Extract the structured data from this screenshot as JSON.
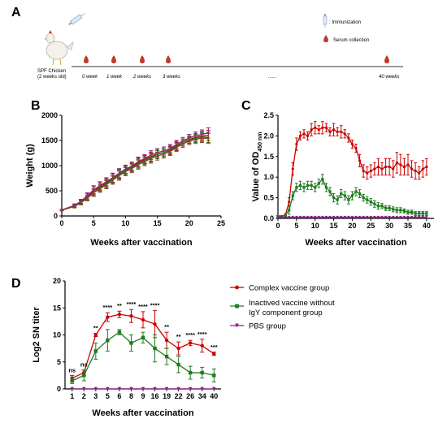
{
  "colors": {
    "complex": "#cc0000",
    "inactived": "#1e7b1e",
    "pbs": "#8b1a8b",
    "brown": "#7a4a1a",
    "blood": "#c0392b"
  },
  "panel_labels": {
    "a": "A",
    "b": "B",
    "c": "C",
    "d": "D"
  },
  "timeline": {
    "legend": {
      "immunization": ": Immunization",
      "serum": "Serum collection"
    },
    "animal_label_line1": "SPF Chicken",
    "animal_label_line2": "(2 weeks old)",
    "time_labels": [
      "0 week",
      "1 week",
      "2 weeks",
      "3 weeks",
      "......",
      "40 weeks"
    ],
    "icons": [
      "chicken-icon",
      "syringe-icon",
      "blood-drop-icon"
    ]
  },
  "chart_data": [
    {
      "panel": "B",
      "type": "line",
      "xlabel": "Weeks after vaccination",
      "ylabel": "Weight (g)",
      "xlim": [
        0,
        25
      ],
      "ylim": [
        0,
        2000
      ],
      "xticks": [
        0,
        5,
        10,
        15,
        20,
        25
      ],
      "yticks": [
        0,
        500,
        1000,
        1500,
        2000
      ],
      "series": [
        {
          "color_key": "complex",
          "x": [
            0,
            2,
            3,
            4,
            5,
            6,
            7,
            8,
            9,
            10,
            11,
            12,
            13,
            14,
            15,
            16,
            17,
            18,
            19,
            20,
            21,
            22,
            23
          ],
          "y": [
            120,
            200,
            280,
            380,
            500,
            580,
            660,
            750,
            840,
            920,
            980,
            1060,
            1120,
            1180,
            1230,
            1260,
            1300,
            1380,
            1460,
            1520,
            1560,
            1590,
            1600
          ],
          "err": [
            15,
            30,
            40,
            60,
            80,
            80,
            80,
            90,
            90,
            80,
            80,
            90,
            80,
            90,
            80,
            80,
            80,
            80,
            70,
            70,
            80,
            90,
            100
          ]
        },
        {
          "color_key": "inactived",
          "x": [
            0,
            2,
            3,
            4,
            5,
            6,
            7,
            8,
            9,
            10,
            11,
            12,
            13,
            14,
            15,
            16,
            17,
            18,
            19,
            20,
            21,
            22,
            23
          ],
          "y": [
            120,
            200,
            270,
            360,
            470,
            560,
            640,
            730,
            820,
            900,
            960,
            1040,
            1100,
            1160,
            1220,
            1260,
            1320,
            1400,
            1460,
            1510,
            1540,
            1570,
            1560
          ],
          "err": [
            15,
            30,
            40,
            50,
            70,
            70,
            80,
            80,
            90,
            80,
            80,
            90,
            80,
            90,
            80,
            80,
            80,
            80,
            70,
            70,
            80,
            90,
            100
          ]
        },
        {
          "color_key": "pbs",
          "x": [
            0,
            2,
            3,
            4,
            5,
            6,
            7,
            8,
            9,
            10,
            11,
            12,
            13,
            14,
            15,
            16,
            17,
            18,
            19,
            20,
            21,
            22,
            23
          ],
          "y": [
            120,
            210,
            290,
            400,
            520,
            600,
            680,
            760,
            850,
            930,
            990,
            1080,
            1140,
            1210,
            1260,
            1290,
            1340,
            1420,
            1490,
            1550,
            1590,
            1620,
            1650
          ],
          "err": [
            15,
            30,
            40,
            60,
            80,
            80,
            80,
            90,
            90,
            80,
            80,
            90,
            80,
            90,
            80,
            80,
            80,
            80,
            70,
            70,
            80,
            90,
            100
          ]
        },
        {
          "color_key": "brown",
          "x": [
            0,
            2,
            3,
            4,
            5,
            6,
            7,
            8,
            9,
            10,
            11,
            12,
            13,
            14,
            15,
            16,
            17,
            18,
            19,
            20,
            21,
            22,
            23
          ],
          "y": [
            115,
            190,
            260,
            350,
            460,
            540,
            620,
            710,
            800,
            880,
            940,
            1020,
            1080,
            1140,
            1190,
            1230,
            1280,
            1360,
            1430,
            1490,
            1520,
            1550,
            1540
          ],
          "err": [
            15,
            30,
            40,
            50,
            70,
            70,
            80,
            80,
            90,
            80,
            80,
            90,
            80,
            90,
            80,
            80,
            80,
            80,
            70,
            70,
            80,
            90,
            100
          ]
        }
      ]
    },
    {
      "panel": "C",
      "type": "line",
      "xlabel": "Weeks after vaccination",
      "ylabel_prefix": "Value of OD",
      "ylabel_sub": "450 nm",
      "xlim": [
        0,
        42
      ],
      "ylim": [
        0,
        2.5
      ],
      "xticks": [
        0,
        5,
        10,
        15,
        20,
        25,
        30,
        35,
        40
      ],
      "yticks": [
        0.0,
        0.5,
        1.0,
        1.5,
        2.0,
        2.5
      ],
      "ytick_labels": [
        "0.0",
        "0.5",
        "1.0",
        "1.5",
        "2.0",
        "2.5"
      ],
      "series": [
        {
          "color_key": "complex",
          "x": [
            0,
            1,
            2,
            3,
            4,
            5,
            6,
            7,
            8,
            9,
            10,
            11,
            12,
            13,
            14,
            15,
            16,
            17,
            18,
            19,
            20,
            21,
            22,
            23,
            24,
            25,
            26,
            27,
            28,
            29,
            30,
            31,
            32,
            33,
            34,
            35,
            36,
            37,
            38,
            39,
            40
          ],
          "y": [
            0.05,
            0.05,
            0.08,
            0.4,
            1.2,
            1.8,
            2.0,
            2.05,
            2.0,
            2.15,
            2.2,
            2.15,
            2.2,
            2.2,
            2.1,
            2.15,
            2.1,
            2.1,
            2.05,
            1.95,
            1.8,
            1.7,
            1.4,
            1.15,
            1.1,
            1.15,
            1.2,
            1.25,
            1.2,
            1.25,
            1.25,
            1.2,
            1.35,
            1.3,
            1.25,
            1.3,
            1.2,
            1.15,
            1.1,
            1.2,
            1.25
          ],
          "err": [
            0.02,
            0.02,
            0.03,
            0.1,
            0.15,
            0.15,
            0.1,
            0.1,
            0.1,
            0.15,
            0.15,
            0.1,
            0.15,
            0.1,
            0.1,
            0.15,
            0.1,
            0.15,
            0.1,
            0.1,
            0.1,
            0.1,
            0.15,
            0.15,
            0.15,
            0.15,
            0.15,
            0.2,
            0.15,
            0.2,
            0.2,
            0.2,
            0.25,
            0.25,
            0.2,
            0.25,
            0.2,
            0.2,
            0.15,
            0.2,
            0.2
          ]
        },
        {
          "color_key": "inactived",
          "x": [
            0,
            1,
            2,
            3,
            4,
            5,
            6,
            7,
            8,
            9,
            10,
            11,
            12,
            13,
            14,
            15,
            16,
            17,
            18,
            19,
            20,
            21,
            22,
            23,
            24,
            25,
            26,
            27,
            28,
            29,
            30,
            31,
            32,
            33,
            34,
            35,
            36,
            37,
            38,
            39,
            40
          ],
          "y": [
            0.05,
            0.05,
            0.08,
            0.2,
            0.55,
            0.75,
            0.8,
            0.75,
            0.8,
            0.8,
            0.75,
            0.85,
            0.95,
            0.75,
            0.65,
            0.5,
            0.45,
            0.6,
            0.55,
            0.45,
            0.55,
            0.65,
            0.6,
            0.5,
            0.45,
            0.4,
            0.35,
            0.3,
            0.3,
            0.25,
            0.25,
            0.22,
            0.2,
            0.2,
            0.18,
            0.15,
            0.15,
            0.12,
            0.12,
            0.12,
            0.12
          ],
          "err": [
            0.02,
            0.02,
            0.03,
            0.1,
            0.1,
            0.1,
            0.1,
            0.1,
            0.1,
            0.1,
            0.1,
            0.1,
            0.12,
            0.1,
            0.1,
            0.1,
            0.1,
            0.1,
            0.1,
            0.1,
            0.1,
            0.1,
            0.1,
            0.08,
            0.08,
            0.08,
            0.08,
            0.08,
            0.06,
            0.06,
            0.06,
            0.06,
            0.06,
            0.06,
            0.05,
            0.05,
            0.05,
            0.05,
            0.05,
            0.05,
            0.05
          ]
        },
        {
          "color_key": "pbs",
          "x": [
            0,
            1,
            2,
            3,
            4,
            5,
            6,
            7,
            8,
            9,
            10,
            11,
            12,
            13,
            14,
            15,
            16,
            17,
            18,
            19,
            20,
            21,
            22,
            23,
            24,
            25,
            26,
            27,
            28,
            29,
            30,
            31,
            32,
            33,
            34,
            35,
            36,
            37,
            38,
            39,
            40
          ],
          "y": [
            0.03,
            0.03,
            0.03,
            0.03,
            0.03,
            0.03,
            0.03,
            0.03,
            0.03,
            0.03,
            0.03,
            0.03,
            0.03,
            0.03,
            0.03,
            0.03,
            0.03,
            0.03,
            0.03,
            0.03,
            0.03,
            0.03,
            0.03,
            0.03,
            0.03,
            0.03,
            0.03,
            0.03,
            0.03,
            0.03,
            0.03,
            0.03,
            0.03,
            0.03,
            0.03,
            0.03,
            0.03,
            0.03,
            0.03,
            0.03,
            0.03
          ],
          "err": []
        }
      ]
    },
    {
      "panel": "D",
      "type": "line",
      "xlabel": "Weeks after vaccination",
      "ylabel": "Log2 SN titer",
      "categories": [
        "1",
        "2",
        "3",
        "5",
        "6",
        "8",
        "9",
        "16",
        "19",
        "22",
        "26",
        "34",
        "40"
      ],
      "ylim": [
        0,
        20
      ],
      "yticks": [
        0,
        5,
        10,
        15,
        20
      ],
      "significance": [
        "ns",
        "ns",
        "**",
        "****",
        "**",
        "****",
        "****",
        "****",
        "**",
        "**",
        "****",
        "****",
        "***"
      ],
      "legend_placement": "right",
      "series": [
        {
          "name": "Complex vaccine group",
          "color_key": "complex",
          "marker": "circle",
          "values": [
            2.0,
            3.0,
            10.0,
            13.3,
            13.8,
            13.5,
            12.8,
            12.0,
            9.0,
            7.5,
            8.5,
            8.0,
            6.5
          ],
          "err": [
            0.5,
            0.5,
            0.3,
            0.8,
            0.6,
            1.2,
            1.5,
            2.5,
            1.5,
            1.2,
            0.5,
            1.2,
            0.3
          ]
        },
        {
          "name": "Inactived vaccine without IgY component group",
          "name_lines": [
            "Inactived vaccine without",
            "IgY component group"
          ],
          "color_key": "inactived",
          "marker": "square",
          "values": [
            1.5,
            2.5,
            7.0,
            9.0,
            10.5,
            8.5,
            9.5,
            7.5,
            6.0,
            4.5,
            3.0,
            3.0,
            2.5
          ],
          "err": [
            0.5,
            1.0,
            1.5,
            2.0,
            0.5,
            1.5,
            1.0,
            2.5,
            1.5,
            1.5,
            1.2,
            1.0,
            1.2
          ]
        },
        {
          "name": "PBS group",
          "color_key": "pbs",
          "marker": "triangle",
          "values": [
            0,
            0,
            0,
            0,
            0,
            0,
            0,
            0,
            0,
            0,
            0,
            0,
            0
          ],
          "err": []
        }
      ]
    }
  ]
}
